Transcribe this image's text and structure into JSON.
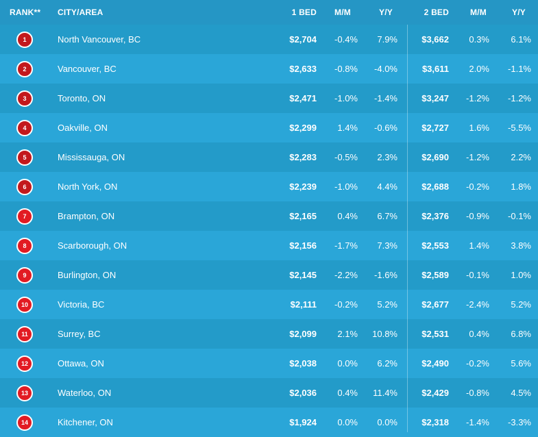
{
  "header": {
    "rank": "RANK**",
    "city": "CITY/AREA",
    "bed1": "1 BED",
    "mm1": "M/M",
    "yy1": "Y/Y",
    "bed2": "2 BED",
    "mm2": "M/M",
    "yy2": "Y/Y"
  },
  "colors": {
    "background": "#2a9fce",
    "header_bg": "#2596c5",
    "row_a": "#2aa6d8",
    "row_b": "#239bc9",
    "badge_dark": "#c3191d",
    "badge_bright": "#e21b23",
    "text": "#ffffff"
  },
  "rows": [
    {
      "rank": "1",
      "city": "North Vancouver, BC",
      "bed1": "$2,704",
      "mm1": "-0.4%",
      "yy1": "7.9%",
      "bed2": "$3,662",
      "mm2": "0.3%",
      "yy2": "6.1%"
    },
    {
      "rank": "2",
      "city": "Vancouver, BC",
      "bed1": "$2,633",
      "mm1": "-0.8%",
      "yy1": "-4.0%",
      "bed2": "$3,611",
      "mm2": "2.0%",
      "yy2": "-1.1%"
    },
    {
      "rank": "3",
      "city": "Toronto, ON",
      "bed1": "$2,471",
      "mm1": "-1.0%",
      "yy1": "-1.4%",
      "bed2": "$3,247",
      "mm2": "-1.2%",
      "yy2": "-1.2%"
    },
    {
      "rank": "4",
      "city": "Oakville, ON",
      "bed1": "$2,299",
      "mm1": "1.4%",
      "yy1": "-0.6%",
      "bed2": "$2,727",
      "mm2": "1.6%",
      "yy2": "-5.5%"
    },
    {
      "rank": "5",
      "city": "Mississauga, ON",
      "bed1": "$2,283",
      "mm1": "-0.5%",
      "yy1": "2.3%",
      "bed2": "$2,690",
      "mm2": "-1.2%",
      "yy2": "2.2%"
    },
    {
      "rank": "6",
      "city": "North York, ON",
      "bed1": "$2,239",
      "mm1": "-1.0%",
      "yy1": "4.4%",
      "bed2": "$2,688",
      "mm2": "-0.2%",
      "yy2": "1.8%"
    },
    {
      "rank": "7",
      "city": "Brampton, ON",
      "bed1": "$2,165",
      "mm1": "0.4%",
      "yy1": "6.7%",
      "bed2": "$2,376",
      "mm2": "-0.9%",
      "yy2": "-0.1%"
    },
    {
      "rank": "8",
      "city": "Scarborough, ON",
      "bed1": "$2,156",
      "mm1": "-1.7%",
      "yy1": "7.3%",
      "bed2": "$2,553",
      "mm2": "1.4%",
      "yy2": "3.8%"
    },
    {
      "rank": "9",
      "city": "Burlington, ON",
      "bed1": "$2,145",
      "mm1": "-2.2%",
      "yy1": "-1.6%",
      "bed2": "$2,589",
      "mm2": "-0.1%",
      "yy2": "1.0%"
    },
    {
      "rank": "10",
      "city": "Victoria, BC",
      "bed1": "$2,111",
      "mm1": "-0.2%",
      "yy1": "5.2%",
      "bed2": "$2,677",
      "mm2": "-2.4%",
      "yy2": "5.2%"
    },
    {
      "rank": "11",
      "city": "Surrey, BC",
      "bed1": "$2,099",
      "mm1": "2.1%",
      "yy1": "10.8%",
      "bed2": "$2,531",
      "mm2": "0.4%",
      "yy2": "6.8%"
    },
    {
      "rank": "12",
      "city": "Ottawa, ON",
      "bed1": "$2,038",
      "mm1": "0.0%",
      "yy1": "6.2%",
      "bed2": "$2,490",
      "mm2": "-0.2%",
      "yy2": "5.6%"
    },
    {
      "rank": "13",
      "city": "Waterloo, ON",
      "bed1": "$2,036",
      "mm1": "0.4%",
      "yy1": "11.4%",
      "bed2": "$2,429",
      "mm2": "-0.8%",
      "yy2": "4.5%"
    },
    {
      "rank": "14",
      "city": "Kitchener, ON",
      "bed1": "$1,924",
      "mm1": "0.0%",
      "yy1": "0.0%",
      "bed2": "$2,318",
      "mm2": "-1.4%",
      "yy2": "-3.3%"
    }
  ]
}
